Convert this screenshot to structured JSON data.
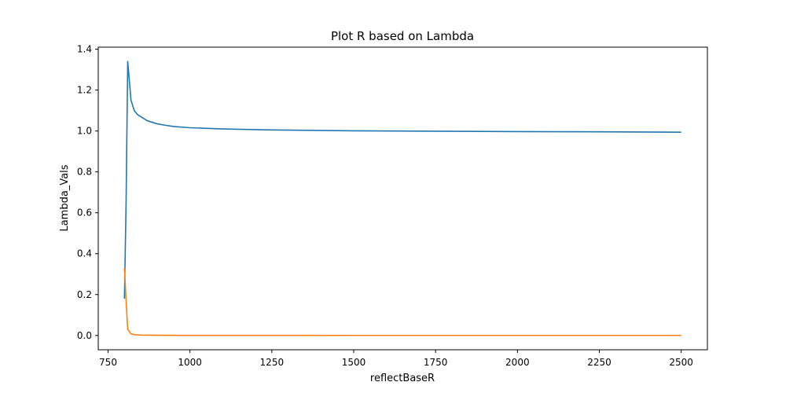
{
  "chart_data": {
    "type": "line",
    "title": "Plot R based on Lambda",
    "xlabel": "reflectBaseR",
    "ylabel": "Lambda_Vals",
    "xlim": [
      720,
      2580
    ],
    "ylim": [
      -0.07,
      1.41
    ],
    "xticks": [
      750,
      1000,
      1250,
      1500,
      1750,
      2000,
      2250,
      2500
    ],
    "yticks": [
      0.0,
      0.2,
      0.4,
      0.6,
      0.8,
      1.0,
      1.2,
      1.4
    ],
    "grid": false,
    "series": [
      {
        "color": "#1f77b4",
        "x": [
          800,
          805,
          810,
          820,
          830,
          840,
          850,
          860,
          870,
          880,
          900,
          925,
          950,
          1000,
          1100,
          1250,
          1500,
          1750,
          2000,
          2250,
          2500
        ],
        "y": [
          0.18,
          0.65,
          1.34,
          1.15,
          1.1,
          1.08,
          1.07,
          1.06,
          1.05,
          1.045,
          1.035,
          1.028,
          1.022,
          1.016,
          1.01,
          1.005,
          1.001,
          0.999,
          0.997,
          0.996,
          0.994
        ]
      },
      {
        "color": "#ff7f0e",
        "x": [
          800,
          805,
          810,
          820,
          830,
          850,
          900,
          1000,
          1500,
          2000,
          2500
        ],
        "y": [
          0.33,
          0.17,
          0.03,
          0.008,
          0.004,
          0.002,
          0.001,
          0.0005,
          0.0002,
          0.0001,
          0.0001
        ]
      }
    ]
  }
}
